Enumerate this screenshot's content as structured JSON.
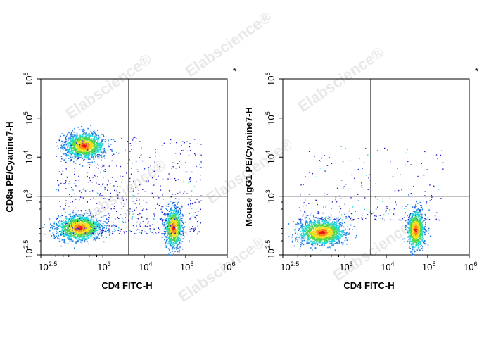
{
  "watermark": "Elabscience®",
  "chart_data": [
    {
      "type": "scatter",
      "title": "",
      "xlabel": "CD4 FITC-H",
      "ylabel": "CD8a PE/Cyanine7-H",
      "corner_mark": "*",
      "x_scale": "biexponential",
      "y_scale": "biexponential",
      "xlim": [
        -316,
        1000000
      ],
      "ylim": [
        -316,
        1000000
      ],
      "x_ticks": [
        {
          "base": "-10",
          "exp": "2.5"
        },
        {
          "base": "10",
          "exp": "3"
        },
        {
          "base": "10",
          "exp": "4"
        },
        {
          "base": "10",
          "exp": "5"
        },
        {
          "base": "10",
          "exp": "6"
        }
      ],
      "y_ticks": [
        {
          "base": "-10",
          "exp": "2.5"
        },
        {
          "base": "10",
          "exp": "3"
        },
        {
          "base": "10",
          "exp": "4"
        },
        {
          "base": "10",
          "exp": "5"
        },
        {
          "base": "10",
          "exp": "6"
        }
      ],
      "quadrant_gate": {
        "x": 4200,
        "y": 1000
      },
      "populations": [
        {
          "x": 600,
          "y": 20000,
          "density": "high"
        },
        {
          "x": 500,
          "y": 300,
          "density": "high"
        },
        {
          "x": 50000,
          "y": 300,
          "density": "high"
        }
      ]
    },
    {
      "type": "scatter",
      "title": "",
      "xlabel": "CD4 FITC-H",
      "ylabel": "Mouse IgG1 PE/Cyanine7-H",
      "corner_mark": "*",
      "x_scale": "biexponential",
      "y_scale": "biexponential",
      "xlim": [
        -316,
        1000000
      ],
      "ylim": [
        -316,
        1000000
      ],
      "x_ticks": [
        {
          "base": "-10",
          "exp": "2.5"
        },
        {
          "base": "10",
          "exp": "3"
        },
        {
          "base": "10",
          "exp": "4"
        },
        {
          "base": "10",
          "exp": "5"
        },
        {
          "base": "10",
          "exp": "6"
        }
      ],
      "y_ticks": [
        {
          "base": "-10",
          "exp": "2.5"
        },
        {
          "base": "10",
          "exp": "3"
        },
        {
          "base": "10",
          "exp": "4"
        },
        {
          "base": "10",
          "exp": "5"
        },
        {
          "base": "10",
          "exp": "6"
        }
      ],
      "quadrant_gate": {
        "x": 4200,
        "y": 1000
      },
      "populations": [
        {
          "x": 500,
          "y": 200,
          "density": "high"
        },
        {
          "x": 50000,
          "y": 250,
          "density": "high"
        }
      ]
    }
  ]
}
